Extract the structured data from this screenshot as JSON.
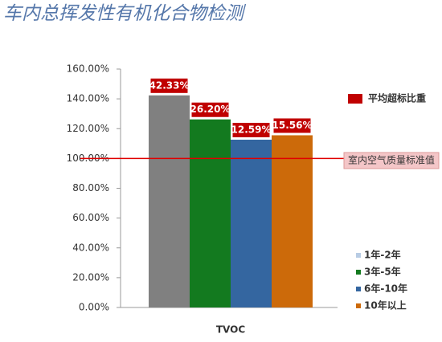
{
  "chart_data": {
    "type": "bar",
    "title": "车内总挥发性有机化合物检测",
    "categories": [
      "TVOC"
    ],
    "series": [
      {
        "name": "1年-2年",
        "color": "#b8cce4",
        "bar_color": "#808080",
        "values": [
          142.33
        ]
      },
      {
        "name": "3年-5年",
        "color": "#137a1f",
        "values": [
          126.2
        ]
      },
      {
        "name": "6年-10年",
        "color": "#3466a0",
        "values": [
          112.59
        ]
      },
      {
        "name": "10年以上",
        "color": "#cc6a0a",
        "values": [
          115.56
        ]
      }
    ],
    "excess_labels": [
      "42.33%",
      "26.20%",
      "12.59%",
      "15.56%"
    ],
    "excess_legend": {
      "label": "平均超标比重",
      "color": "#c00000"
    },
    "reference": {
      "value": 100,
      "label": "室内空气质量标准值",
      "color": "#e00000"
    },
    "ylim": [
      0,
      160
    ],
    "yticks": [
      {
        "value": 0,
        "label": "0.00%"
      },
      {
        "value": 20,
        "label": "20.00%"
      },
      {
        "value": 40,
        "label": "40.00%"
      },
      {
        "value": 60,
        "label": "60.00%"
      },
      {
        "value": 80,
        "label": "80.00%"
      },
      {
        "value": 100,
        "label": "100.00%"
      },
      {
        "value": 120,
        "label": "120.00%"
      },
      {
        "value": 140,
        "label": "140.00%"
      },
      {
        "value": 160,
        "label": "160.00%"
      }
    ],
    "grid": false
  }
}
